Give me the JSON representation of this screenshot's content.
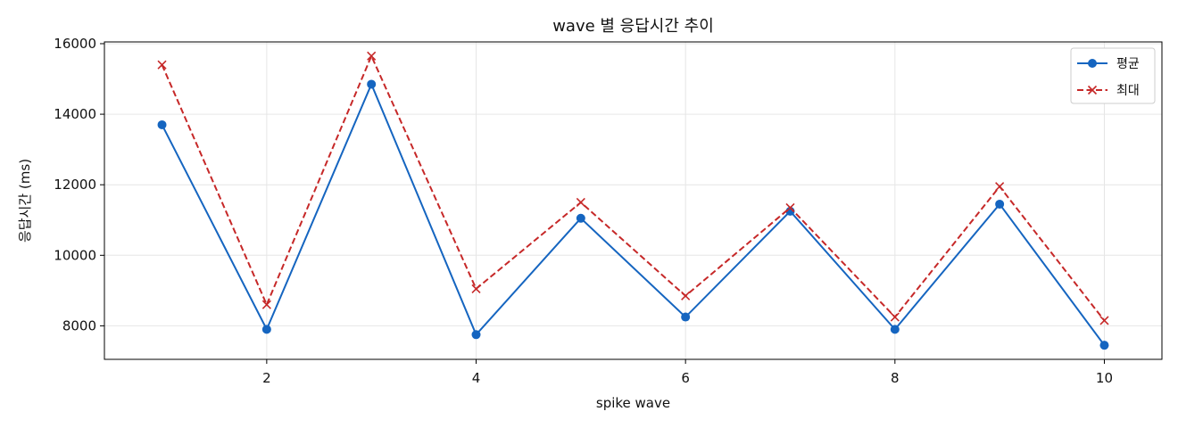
{
  "chart_data": {
    "type": "line",
    "title": "wave 별 응답시간 추이",
    "xlabel": "spike wave",
    "ylabel": "응답시간 (ms)",
    "x": [
      1,
      2,
      3,
      4,
      5,
      6,
      7,
      8,
      9,
      10
    ],
    "xlim": [
      0.45,
      10.55
    ],
    "ylim": [
      7050,
      16050
    ],
    "x_ticks": [
      2,
      4,
      6,
      8,
      10
    ],
    "y_ticks": [
      8000,
      10000,
      12000,
      14000,
      16000
    ],
    "grid": true,
    "legend_position": "top-right",
    "series": [
      {
        "name": "평균",
        "values": [
          13700,
          7900,
          14850,
          7750,
          11050,
          8250,
          11250,
          7900,
          11450,
          7450
        ],
        "color": "#1565c0",
        "marker": "circle",
        "line_style": "solid"
      },
      {
        "name": "최대",
        "values": [
          15400,
          8600,
          15650,
          9050,
          11500,
          8850,
          11350,
          8250,
          11950,
          8150
        ],
        "color": "#c62828",
        "marker": "x",
        "line_style": "dashed"
      }
    ]
  }
}
